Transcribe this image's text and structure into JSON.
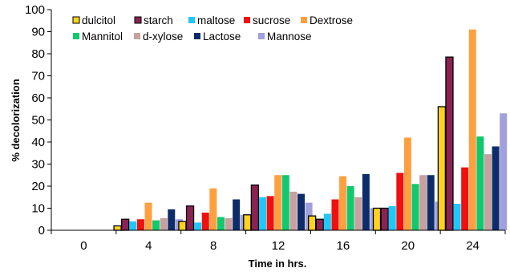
{
  "chart_data": {
    "type": "bar",
    "title": "",
    "xlabel": "Time in hrs.",
    "ylabel": "% decolorization",
    "categories": [
      "0",
      "4",
      "8",
      "12",
      "16",
      "20",
      "24"
    ],
    "ylim": [
      0,
      100
    ],
    "yticks": [
      "0",
      "10",
      "20",
      "30",
      "40",
      "50",
      "60",
      "70",
      "80",
      "90",
      "100"
    ],
    "grid": false,
    "legend_position": "top-left",
    "series": [
      {
        "name": "dulcitol",
        "color": "#FFD21E",
        "outline": "#000000",
        "values": [
          0,
          2,
          4,
          7,
          6.5,
          10,
          56
        ]
      },
      {
        "name": "starch",
        "color": "#8B2252",
        "outline": "#000000",
        "values": [
          0,
          5,
          11,
          20.5,
          5,
          10,
          78.5
        ]
      },
      {
        "name": "maltose",
        "color": "#1EC8FA",
        "outline": null,
        "values": [
          0,
          4,
          3.5,
          15,
          7.5,
          11,
          12
        ]
      },
      {
        "name": "sucrose",
        "color": "#F01010",
        "outline": null,
        "values": [
          0,
          5,
          8,
          15.5,
          14,
          26,
          28.5
        ]
      },
      {
        "name": "Dextrose",
        "color": "#FFA040",
        "outline": null,
        "values": [
          0,
          12.5,
          19,
          25,
          24.5,
          42,
          91
        ]
      },
      {
        "name": "Mannitol",
        "color": "#12C86E",
        "outline": null,
        "values": [
          0,
          4.5,
          6,
          25,
          20,
          21,
          42.5
        ]
      },
      {
        "name": "d-xylose",
        "color": "#C8A0A0",
        "outline": null,
        "values": [
          0,
          5.5,
          5.5,
          17.5,
          15,
          25,
          34.5
        ]
      },
      {
        "name": "Lactose",
        "color": "#0D2D6A",
        "outline": null,
        "values": [
          0,
          9.5,
          14,
          16.5,
          25.5,
          25,
          38
        ]
      },
      {
        "name": "Mannose",
        "color": "#A0A0DC",
        "outline": null,
        "values": [
          0,
          5,
          7,
          12.5,
          10,
          13,
          53
        ]
      }
    ]
  }
}
